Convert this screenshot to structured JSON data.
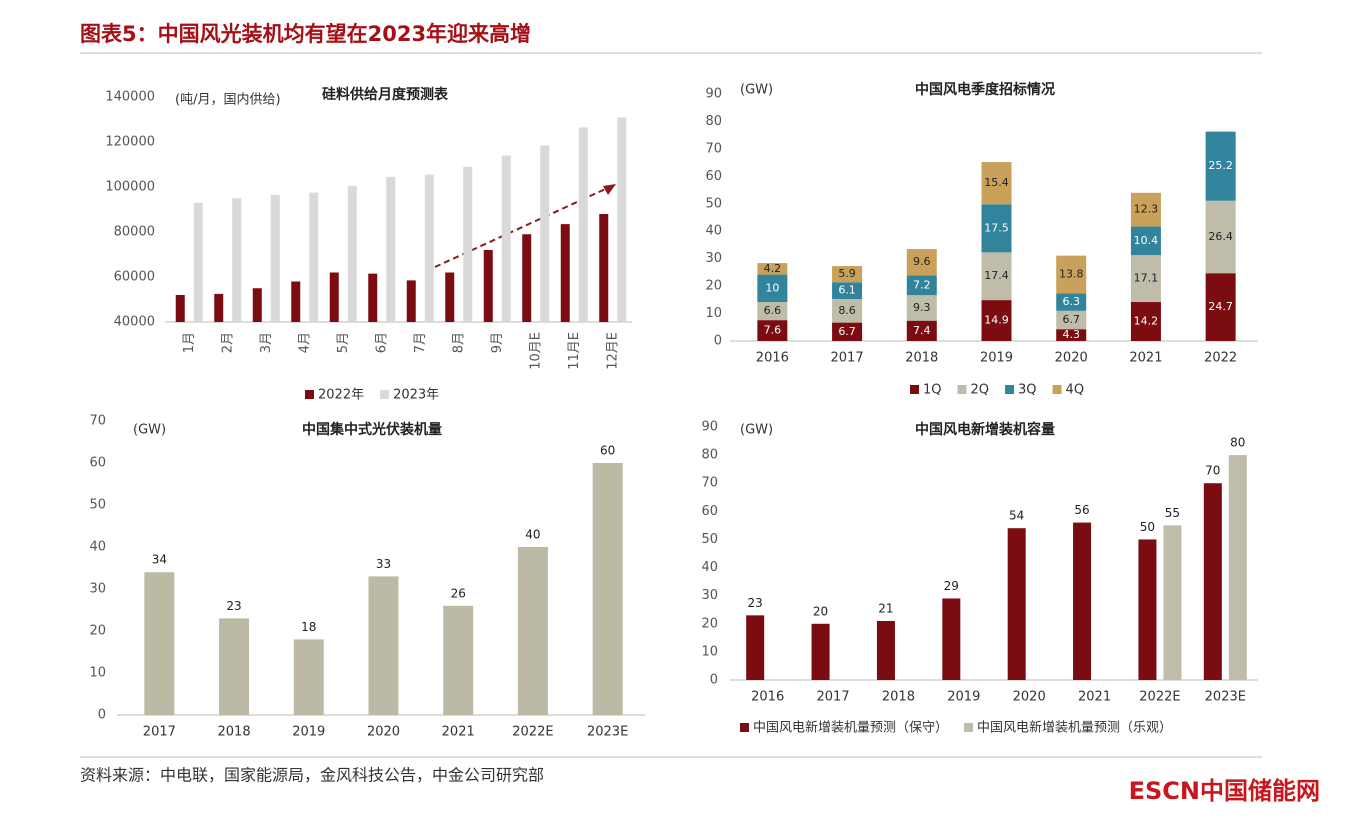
{
  "header": {
    "title": "图表5：中国风光装机均有望在2023年迎来高增"
  },
  "chart_data": [
    {
      "type": "bar",
      "title": "硅料供给月度预测表",
      "y_unit": "(吨/月，国内供给)",
      "categories": [
        "1月",
        "2月",
        "3月",
        "4月",
        "5月",
        "6月",
        "7月",
        "8月",
        "9月",
        "10月E",
        "11月E",
        "12月E"
      ],
      "series": [
        {
          "name": "2022年",
          "color": "#7b0c12",
          "values": [
            52000,
            52500,
            55000,
            58000,
            62000,
            61500,
            58500,
            62000,
            72000,
            79000,
            83500,
            88000
          ]
        },
        {
          "name": "2023年",
          "color": "#d9d9d9",
          "values": [
            93000,
            95000,
            96500,
            97500,
            100500,
            104500,
            105500,
            109000,
            114000,
            118500,
            126500,
            131000
          ]
        }
      ],
      "ylim": [
        40000,
        140000
      ],
      "yticks": [
        40000,
        60000,
        80000,
        100000,
        120000,
        140000
      ],
      "data_labels": false
    },
    {
      "type": "stacked_bar",
      "title": "中国风电季度招标情况",
      "y_unit": "(GW)",
      "categories": [
        "2016",
        "2017",
        "2018",
        "2019",
        "2020",
        "2021",
        "2022"
      ],
      "series": [
        {
          "name": "1Q",
          "color": "#7b0c12",
          "values": [
            7.6,
            6.7,
            7.4,
            14.9,
            4.3,
            14.2,
            24.7
          ]
        },
        {
          "name": "2Q",
          "color": "#bfbcaa",
          "values": [
            6.6,
            8.6,
            9.3,
            17.4,
            6.7,
            17.1,
            26.4
          ]
        },
        {
          "name": "3Q",
          "color": "#31849b",
          "values": [
            10,
            6.1,
            7.2,
            17.5,
            6.3,
            10.4,
            25.2
          ]
        },
        {
          "name": "4Q",
          "color": "#c9a15a",
          "values": [
            4.2,
            5.9,
            9.6,
            15.4,
            13.8,
            12.3,
            null
          ]
        }
      ],
      "ylim": [
        0,
        90
      ],
      "yticks": [
        0,
        10,
        20,
        30,
        40,
        50,
        60,
        70,
        80,
        90
      ],
      "data_labels": true
    },
    {
      "type": "bar",
      "title": "中国集中式光伏装机量",
      "y_unit": "(GW)",
      "categories": [
        "2017",
        "2018",
        "2019",
        "2020",
        "2021",
        "2022E",
        "2023E"
      ],
      "values": [
        34,
        23,
        18,
        33,
        26,
        40,
        60
      ],
      "color": "#bcbaa5",
      "ylim": [
        0,
        70
      ],
      "yticks": [
        0,
        10,
        20,
        30,
        40,
        50,
        60,
        70
      ],
      "data_labels": true
    },
    {
      "type": "bar",
      "title": "中国风电新增装机容量",
      "y_unit": "(GW)",
      "categories": [
        "2016",
        "2017",
        "2018",
        "2019",
        "2020",
        "2021",
        "2022E",
        "2023E"
      ],
      "series": [
        {
          "name": "中国风电新增装机量预测（保守）",
          "color": "#7b0c12",
          "values": [
            23,
            20,
            21,
            29,
            54,
            56,
            50,
            70
          ]
        },
        {
          "name": "中国风电新增装机量预测（乐观）",
          "color": "#bfbcaa",
          "values": [
            null,
            null,
            null,
            null,
            null,
            null,
            55,
            80
          ]
        }
      ],
      "ylim": [
        0,
        90
      ],
      "yticks": [
        0,
        10,
        20,
        30,
        40,
        50,
        60,
        70,
        80,
        90
      ],
      "data_labels": true
    }
  ],
  "footer": {
    "source": "资料来源：中电联，国家能源局，金风科技公告，中金公司研究部",
    "logo": "ESCN中国储能网"
  }
}
